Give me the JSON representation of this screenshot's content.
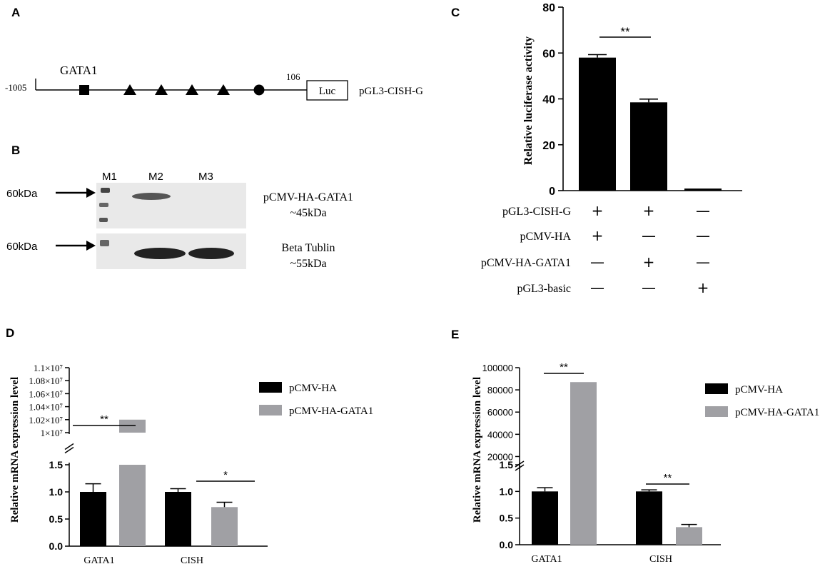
{
  "panels": {
    "A": {
      "letter": "A",
      "start": "-1005",
      "end": "106",
      "element": "GATA1",
      "box": "Luc",
      "construct": "pGL3-CISH-G"
    },
    "B": {
      "letter": "B",
      "lanes": [
        "M1",
        "M2",
        "M3"
      ],
      "markers": [
        "60kDa",
        "60kDa"
      ],
      "band1": {
        "name": "pCMV-HA-GATA1",
        "size": "~45kDa"
      },
      "band2": {
        "name": "Beta Tublin",
        "size": "~55kDa"
      }
    },
    "C": {
      "letter": "C"
    },
    "D": {
      "letter": "D"
    },
    "E": {
      "letter": "E"
    }
  },
  "colors": {
    "black": "#000000",
    "gray": "#a0a0a4",
    "blot_bg": "#e9e9e9"
  },
  "chart_data": [
    {
      "id": "C",
      "type": "bar",
      "ylabel": "Relative luciferase activity",
      "ylim": [
        0,
        80
      ],
      "yticks": [
        "0",
        "20",
        "40",
        "60",
        "80"
      ],
      "values": [
        58,
        38.5,
        0.9
      ],
      "errors": [
        1.3,
        1.4,
        0.1
      ],
      "significance": {
        "label": "**",
        "between": [
          0,
          1
        ]
      },
      "conditions": [
        {
          "label": "pGL3-CISH-G",
          "marks": [
            "+",
            "+",
            "—"
          ]
        },
        {
          "label": "pCMV-HA",
          "marks": [
            "+",
            "—",
            "—"
          ]
        },
        {
          "label": "pCMV-HA-GATA1",
          "marks": [
            "—",
            "+",
            "—"
          ]
        },
        {
          "label": "pGL3-basic",
          "marks": [
            "—",
            "—",
            "+"
          ]
        }
      ]
    },
    {
      "id": "D",
      "type": "bar",
      "ylabel": "Relative mRNA expression level",
      "categories": [
        "GATA1",
        "CISH"
      ],
      "legend": [
        "pCMV-HA",
        "pCMV-HA-GATA1"
      ],
      "series": [
        {
          "name": "pCMV-HA",
          "values": [
            1.0,
            1.0
          ],
          "errors": [
            0.15,
            0.06
          ]
        },
        {
          "name": "pCMV-HA-GATA1",
          "values": [
            10200000,
            0.72
          ],
          "errors": [
            0,
            0.09
          ]
        }
      ],
      "lower_range": [
        0,
        1.5
      ],
      "lower_ticks": [
        "0.0",
        "0.5",
        "1.0",
        "1.5"
      ],
      "upper_range": [
        10000000,
        11000000
      ],
      "upper_ticks": [
        "1×10⁷",
        "1.02×10⁷",
        "1.04×10⁷",
        "1.06×10⁷",
        "1.08×10⁷",
        "1.1×10⁷"
      ],
      "significance": [
        "**",
        "*"
      ]
    },
    {
      "id": "E",
      "type": "bar",
      "ylabel": "Relative mRNA expression level",
      "categories": [
        "GATA1",
        "CISH"
      ],
      "legend": [
        "pCMV-HA",
        "pCMV-HA-GATA1"
      ],
      "series": [
        {
          "name": "pCMV-HA",
          "values": [
            1.0,
            1.0
          ],
          "errors": [
            0.07,
            0.03
          ]
        },
        {
          "name": "pCMV-HA-GATA1",
          "values": [
            87000,
            0.33
          ],
          "errors": [
            0,
            0.05
          ]
        }
      ],
      "lower_range": [
        0,
        1.5
      ],
      "lower_ticks": [
        "0.0",
        "0.5",
        "1.0",
        "1.5"
      ],
      "upper_range": [
        10000,
        100000
      ],
      "upper_ticks": [
        "20000",
        "40000",
        "60000",
        "80000",
        "100000"
      ],
      "significance": [
        "**",
        "**"
      ]
    }
  ]
}
